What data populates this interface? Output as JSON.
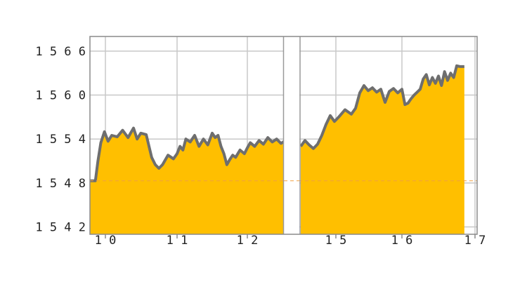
{
  "chart_data": {
    "type": "area",
    "title": "",
    "xlabel": "",
    "ylabel": "",
    "ylim": [
      1541,
      1568
    ],
    "y_ticks": [
      1542,
      1548,
      1554,
      1560,
      1566
    ],
    "x_tick_labels": [
      "10",
      "11",
      "12",
      "15",
      "16",
      "17"
    ],
    "reference_line": {
      "value": 1548.3,
      "style": "dashed"
    },
    "grid": true,
    "colors": {
      "fill": "#ffbf00",
      "line": "#6e6e6e",
      "reference": "#f0a040",
      "grid": "#c8c8c8"
    },
    "series": [
      {
        "segment": "10-12",
        "points": [
          [
            "10 00:00",
            1548.3
          ],
          [
            "10 00:05",
            1548.3
          ],
          [
            "10 00:15",
            1548.3
          ],
          [
            "10 00:22",
            1551.0
          ],
          [
            "10 00:30",
            1553.5
          ],
          [
            "10 00:40",
            1555.0
          ],
          [
            "10 00:50",
            1553.7
          ],
          [
            "10 01:00",
            1554.5
          ],
          [
            "10 01:15",
            1554.3
          ],
          [
            "10 01:30",
            1555.2
          ],
          [
            "10 01:45",
            1554.2
          ],
          [
            "10 02:00",
            1555.5
          ],
          [
            "10 02:10",
            1554.0
          ],
          [
            "10 02:20",
            1554.8
          ],
          [
            "10 02:35",
            1554.6
          ],
          [
            "10 02:50",
            1551.5
          ],
          [
            "10 03:00",
            1550.5
          ],
          [
            "10 03:10",
            1550.0
          ],
          [
            "10 03:20",
            1550.5
          ],
          [
            "10 03:35",
            1551.8
          ],
          [
            "10 03:50",
            1551.3
          ],
          [
            "11 00:00",
            1552.0
          ],
          [
            "11 00:10",
            1553.0
          ],
          [
            "11 00:20",
            1552.5
          ],
          [
            "11 00:30",
            1554.0
          ],
          [
            "11 00:45",
            1553.6
          ],
          [
            "11 01:00",
            1554.5
          ],
          [
            "11 01:15",
            1553.0
          ],
          [
            "11 01:30",
            1554.0
          ],
          [
            "11 01:45",
            1553.2
          ],
          [
            "11 02:00",
            1554.8
          ],
          [
            "11 02:10",
            1554.2
          ],
          [
            "11 02:20",
            1554.5
          ],
          [
            "11 02:30",
            1553.0
          ],
          [
            "11 02:40",
            1552.0
          ],
          [
            "11 02:50",
            1550.5
          ],
          [
            "11 03:00",
            1551.2
          ],
          [
            "11 03:10",
            1551.8
          ],
          [
            "11 03:20",
            1551.5
          ],
          [
            "11 03:35",
            1552.5
          ],
          [
            "11 03:50",
            1552.0
          ],
          [
            "12 00:00",
            1552.8
          ],
          [
            "12 00:10",
            1553.5
          ],
          [
            "12 00:25",
            1553.0
          ],
          [
            "12 00:40",
            1553.8
          ],
          [
            "12 00:55",
            1553.3
          ],
          [
            "12 01:10",
            1554.2
          ],
          [
            "12 01:25",
            1553.6
          ],
          [
            "12 01:40",
            1554.0
          ],
          [
            "12 01:55",
            1553.4
          ],
          [
            "12 02:10",
            1553.8
          ],
          [
            "12 02:20",
            1554.1
          ],
          [
            "12 02:28",
            1553.8
          ]
        ]
      },
      {
        "segment": "15-17",
        "points": [
          [
            "15 00:00",
            1553.0
          ],
          [
            "15 00:10",
            1553.8
          ],
          [
            "15 00:20",
            1553.2
          ],
          [
            "15 00:30",
            1552.7
          ],
          [
            "15 00:40",
            1553.3
          ],
          [
            "15 00:50",
            1554.5
          ],
          [
            "15 01:00",
            1556.0
          ],
          [
            "15 01:10",
            1557.2
          ],
          [
            "15 01:20",
            1556.4
          ],
          [
            "15 01:30",
            1557.0
          ],
          [
            "15 01:45",
            1558.0
          ],
          [
            "15 02:00",
            1557.4
          ],
          [
            "15 02:10",
            1558.2
          ],
          [
            "15 02:20",
            1560.3
          ],
          [
            "15 02:30",
            1561.3
          ],
          [
            "15 02:40",
            1560.6
          ],
          [
            "15 02:50",
            1561.0
          ],
          [
            "15 03:00",
            1560.4
          ],
          [
            "15 03:10",
            1560.8
          ],
          [
            "15 03:20",
            1559.0
          ],
          [
            "15 03:30",
            1560.5
          ],
          [
            "15 03:40",
            1560.9
          ],
          [
            "15 03:50",
            1560.3
          ],
          [
            "16 00:00",
            1560.8
          ],
          [
            "16 00:10",
            1558.7
          ],
          [
            "16 00:20",
            1558.9
          ],
          [
            "16 00:30",
            1559.5
          ],
          [
            "16 00:40",
            1560.0
          ],
          [
            "16 00:50",
            1560.4
          ],
          [
            "16 01:00",
            1560.8
          ],
          [
            "16 01:10",
            1562.2
          ],
          [
            "16 01:20",
            1562.8
          ],
          [
            "16 01:30",
            1561.4
          ],
          [
            "16 01:40",
            1562.4
          ],
          [
            "16 01:50",
            1561.6
          ],
          [
            "16 02:00",
            1562.6
          ],
          [
            "16 02:10",
            1561.3
          ],
          [
            "16 02:20",
            1563.2
          ],
          [
            "16 02:30",
            1562.0
          ],
          [
            "16 02:40",
            1563.0
          ],
          [
            "16 02:50",
            1562.4
          ],
          [
            "16 03:00",
            1564.0
          ],
          [
            "16 03:10",
            1563.9
          ],
          [
            "16 03:20",
            1563.9
          ],
          [
            "16 03:25",
            1563.9
          ]
        ]
      }
    ]
  }
}
